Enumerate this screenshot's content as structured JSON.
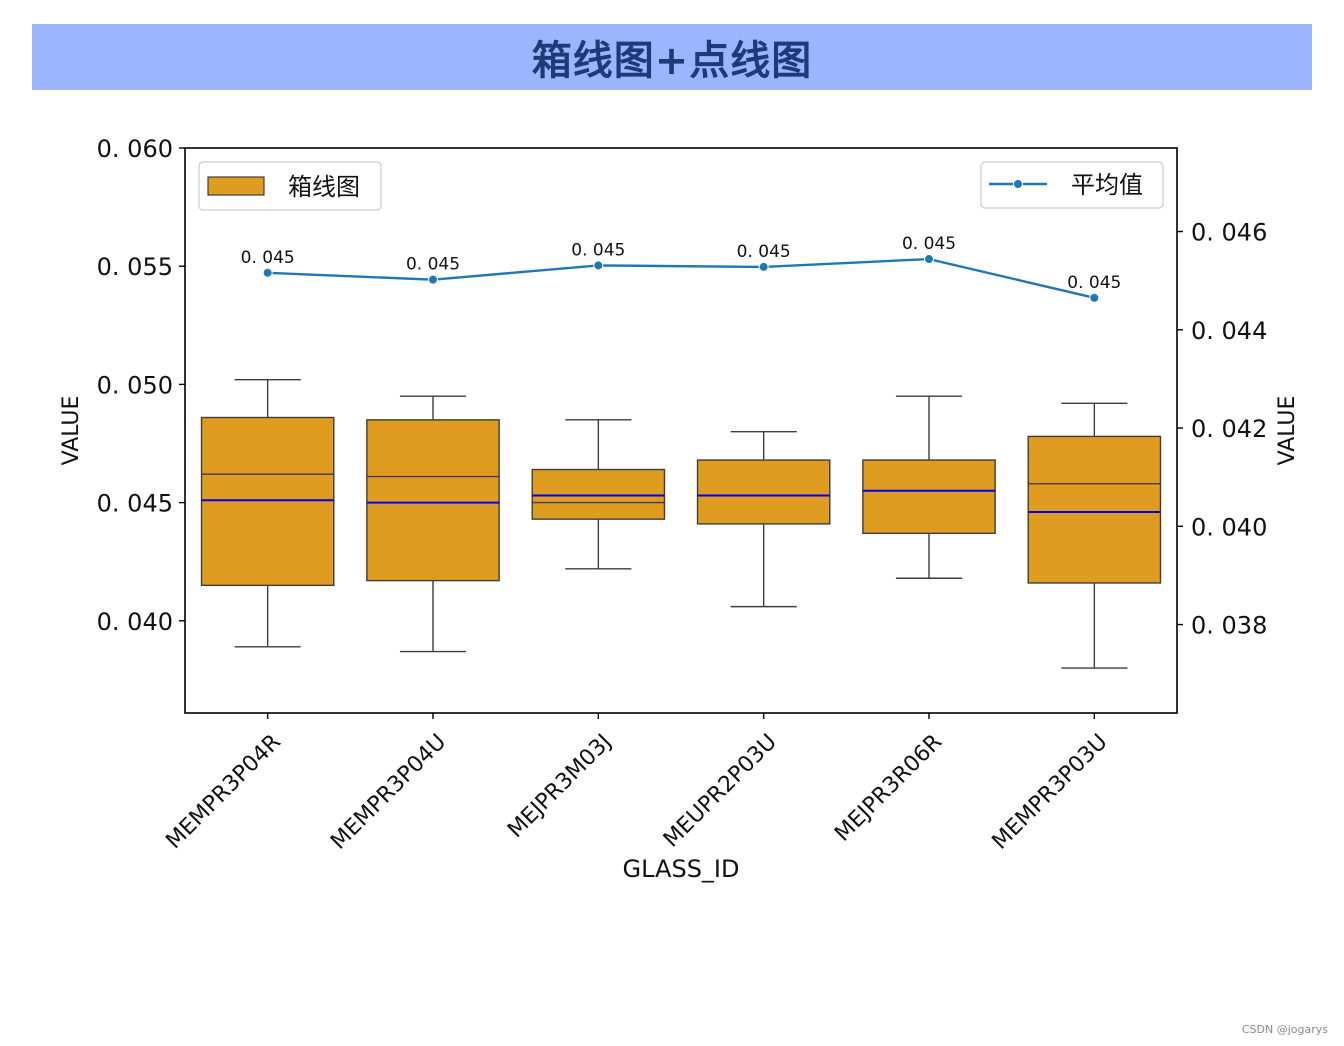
{
  "header": {
    "title": "箱线图+点线图"
  },
  "credit": "CSDN @jogarys",
  "chart_data": {
    "type": "box+line",
    "categories": [
      "MEMPR3P04R",
      "MEMPR3P04U",
      "MEJPR3M03J",
      "MEUPR2P03U",
      "MEJPR3R06R",
      "MEMPR3P03U"
    ],
    "xlabel": "GLASS_ID",
    "ylabel_left": "VALUE",
    "ylabel_right": "VALUE",
    "ylim_left": [
      0.0361,
      0.06
    ],
    "ylim_right": [
      0.0362,
      0.0477
    ],
    "yticks_left": [
      0.04,
      0.045,
      0.05,
      0.055,
      0.06
    ],
    "yticks_left_labels": [
      "0. 040",
      "0. 045",
      "0. 050",
      "0. 055",
      "0. 060"
    ],
    "yticks_right": [
      0.038,
      0.04,
      0.042,
      0.044,
      0.046
    ],
    "yticks_right_labels": [
      "0. 038",
      "0. 040",
      "0. 042",
      "0. 044",
      "0. 046"
    ],
    "box_series": {
      "name": "箱线图",
      "color": "#e09c20",
      "mean_color": "#0000ee",
      "boxes": [
        {
          "whislo": 0.0389,
          "q1": 0.0415,
          "med": 0.0462,
          "q3": 0.0486,
          "whishi": 0.0502,
          "mean": 0.0451
        },
        {
          "whislo": 0.0387,
          "q1": 0.0417,
          "med": 0.0461,
          "q3": 0.0485,
          "whishi": 0.0495,
          "mean": 0.045
        },
        {
          "whislo": 0.0422,
          "q1": 0.0443,
          "med": 0.045,
          "q3": 0.0464,
          "whishi": 0.0485,
          "mean": 0.0453
        },
        {
          "whislo": 0.0406,
          "q1": 0.0441,
          "med": 0.0453,
          "q3": 0.0468,
          "whishi": 0.048,
          "mean": 0.0453
        },
        {
          "whislo": 0.0418,
          "q1": 0.0437,
          "med": 0.0455,
          "q3": 0.0468,
          "whishi": 0.0495,
          "mean": 0.0455
        },
        {
          "whislo": 0.038,
          "q1": 0.0416,
          "med": 0.0458,
          "q3": 0.0478,
          "whishi": 0.0492,
          "mean": 0.0446
        }
      ]
    },
    "line_series": {
      "name": "平均值",
      "color": "#1f77b4",
      "values": [
        0.04516,
        0.04502,
        0.04531,
        0.04528,
        0.04544,
        0.04465
      ],
      "labels": [
        "0. 045",
        "0. 045",
        "0. 045",
        "0. 045",
        "0. 045",
        "0. 045"
      ]
    },
    "legend_left": "upper-left",
    "legend_right": "upper-right",
    "grid": false
  }
}
